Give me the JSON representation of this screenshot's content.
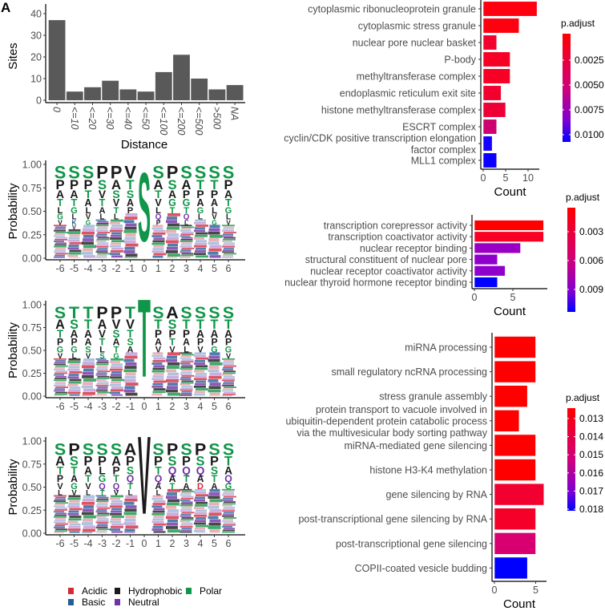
{
  "panel_label": "A",
  "colors": {
    "polar": "#109648",
    "hydrophobic": "#1a1a1a",
    "basic": "#255c99",
    "acidic": "#d62839",
    "neutral": "#7130a8",
    "hist_bar": "#595959"
  },
  "chart_data": [
    {
      "type": "bar",
      "id": "histogram",
      "categories": [
        "0",
        "<=10",
        "<=20",
        "<=30",
        "<=40",
        "<=50",
        "<=100",
        "<=200",
        "<=500",
        ">500",
        "NA"
      ],
      "values": [
        37,
        4,
        6,
        9,
        5,
        4,
        13,
        21,
        10,
        5,
        7
      ],
      "xlabel": "Distance",
      "ylabel": "Sites",
      "ylim": [
        0,
        40
      ],
      "yticks": [
        0,
        10,
        20,
        30,
        40
      ]
    },
    {
      "type": "sequence-logo",
      "id": "logo1",
      "ylabel": "Probability",
      "ylim": [
        0,
        1
      ],
      "yticks": [
        "0.00",
        "0.25",
        "0.50",
        "0.75",
        "1.00"
      ],
      "positions": [
        "-6",
        "-5",
        "-4",
        "-3",
        "-2",
        "-1",
        "0",
        "1",
        "2",
        "3",
        "4",
        "5",
        "6"
      ],
      "top_letters": [
        "SPATLGV",
        "SPATGLKV",
        "SPTALVG",
        "PSVTAL",
        "PASVTL",
        "VTSAP",
        "S",
        "SATVLQP",
        "PSAGT",
        "SAPGTQL",
        "STPAGL",
        "STPALVG",
        "SPATGLV"
      ]
    },
    {
      "type": "sequence-logo",
      "id": "logo2",
      "ylabel": "Probability",
      "ylim": [
        0,
        1
      ],
      "yticks": [
        "0.00",
        "0.25",
        "0.50",
        "0.75",
        "1.00"
      ],
      "positions": [
        "-6",
        "-5",
        "-4",
        "-3",
        "-2",
        "-1",
        "0",
        "1",
        "2",
        "3",
        "4",
        "5",
        "6"
      ],
      "top_letters": [
        "SATPGV",
        "TSAPGL",
        "TTAASV",
        "PAVTLS",
        "PVSATG",
        "TVTSA",
        "T",
        "STPAV",
        "ASPTV",
        "STPAL",
        "STAPV",
        "STAPG",
        "STAPGV"
      ]
    },
    {
      "type": "sequence-logo",
      "id": "logo3",
      "ylabel": "Probability",
      "ylim": [
        0,
        1
      ],
      "yticks": [
        "0.00",
        "0.25",
        "0.50",
        "0.75",
        "1.00"
      ],
      "positions": [
        "-6",
        "-5",
        "-4",
        "-3",
        "-2",
        "-1",
        "0",
        "1",
        "2",
        "3",
        "4",
        "5",
        "6"
      ],
      "top_letters": [
        "SATPVL",
        "PSTAGV",
        "SPATVL",
        "SPLGQT",
        "SAPTQV",
        "APSQTL",
        "V",
        "SPTQAL",
        "PSQAT",
        "SPQTA",
        "PSQAD",
        "SPSTA",
        "STAQG"
      ]
    },
    {
      "type": "bar",
      "orientation": "horizontal",
      "id": "cc",
      "categories": [
        "cytoplasmic ribonucleoprotein granule",
        "cytoplasmic stress granule",
        "nuclear pore nuclear basket",
        "P-body",
        "methyltransferase complex",
        "endoplasmic reticulum exit site",
        "histone methyltransferase complex",
        "ESCRT complex",
        "cyclin/CDK positive transcription elongation\nfactor complex",
        "MLL1 complex"
      ],
      "values": [
        12,
        8,
        3,
        6,
        6,
        4,
        5,
        3,
        2,
        3
      ],
      "bar_colors": [
        "#ff0010",
        "#ff0010",
        "#f2002e",
        "#f60026",
        "#f60026",
        "#f2002e",
        "#ee0036",
        "#cc0070",
        "#1800ff",
        "#0a00ff"
      ],
      "xlabel": "Count",
      "xticks": [
        0,
        5,
        10
      ],
      "legend": {
        "title": "p.adjust",
        "labels": [
          "0.0025",
          "0.0050",
          "0.0075",
          "0.0100"
        ]
      }
    },
    {
      "type": "bar",
      "orientation": "horizontal",
      "id": "mf",
      "categories": [
        "transcription corepressor activity",
        "transcription coactivator activity",
        "nuclear receptor binding",
        "structural constituent of nuclear pore",
        "nuclear receptor coactivator activity",
        "nuclear thyroid hormone receptor binding"
      ],
      "values": [
        9,
        9,
        6,
        3,
        4,
        3
      ],
      "bar_colors": [
        "#ff0000",
        "#f80024",
        "#9a00c4",
        "#9000cc",
        "#9000cc",
        "#0000ff"
      ],
      "xlabel": "Count",
      "xticks": [
        0,
        5
      ],
      "legend": {
        "title": "p.adjust",
        "labels": [
          "0.003",
          "0.006",
          "0.009"
        ]
      }
    },
    {
      "type": "bar",
      "orientation": "horizontal",
      "id": "bp",
      "categories": [
        "miRNA processing",
        "small regulatory ncRNA processing",
        "stress granule assembly",
        "protein transport to vacuole involved in\nubiquitin-dependent protein catabolic process\nvia the multivesicular body sorting pathway",
        "miRNA-mediated gene silencing",
        "histone H3-K4 methylation",
        "gene silencing by RNA",
        "post-transcriptional gene silencing by RNA",
        "post-transcriptional gene silencing",
        "COPII-coated vesicle budding"
      ],
      "values": [
        5,
        5,
        4,
        3,
        5,
        5,
        6,
        5,
        5,
        4
      ],
      "bar_colors": [
        "#ff0000",
        "#ff0000",
        "#ff0000",
        "#ff0000",
        "#ff0000",
        "#ff0000",
        "#f20030",
        "#f40028",
        "#d80070",
        "#0000ff"
      ],
      "xlabel": "Count",
      "xticks": [
        0,
        5
      ],
      "legend": {
        "title": "p.adjust",
        "labels": [
          "0.013",
          "0.014",
          "0.015",
          "0.016",
          "0.017",
          "0.018"
        ]
      }
    }
  ],
  "logo_legend": [
    {
      "label": "Acidic",
      "color": "#d62839"
    },
    {
      "label": "Hydrophobic",
      "color": "#1a1a1a"
    },
    {
      "label": "Polar",
      "color": "#109648"
    },
    {
      "label": "Basic",
      "color": "#255c99"
    },
    {
      "label": "Neutral",
      "color": "#7130a8"
    }
  ]
}
